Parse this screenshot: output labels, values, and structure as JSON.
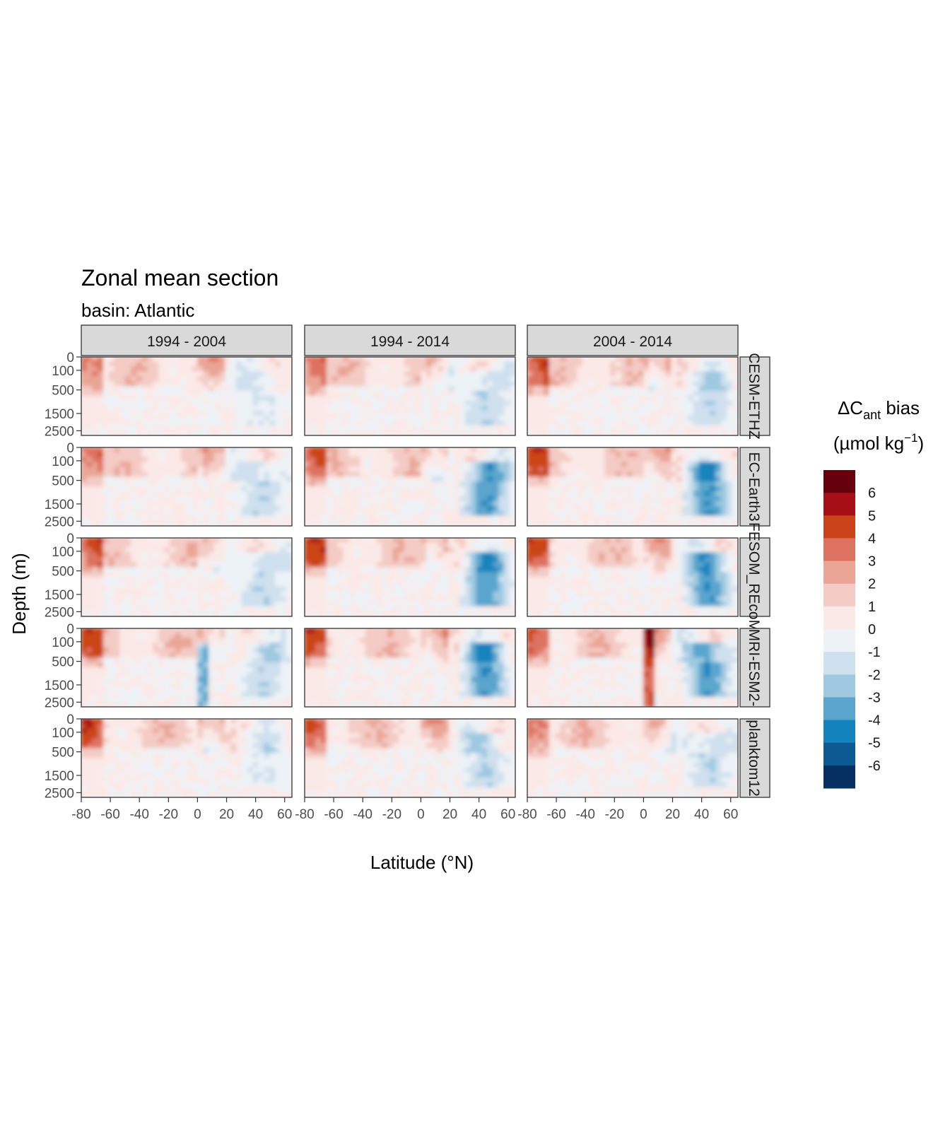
{
  "chart_data": {
    "type": "heatmap",
    "title": "Zonal mean section",
    "subtitle": "basin: Atlantic",
    "xlabel": "Latitude (°N)",
    "ylabel": "Depth (m)",
    "xlim": [
      -80,
      65
    ],
    "x_ticks": [
      "-80",
      "-60",
      "-40",
      "-20",
      "0",
      "20",
      "40",
      "60"
    ],
    "y_ticks": [
      "0",
      "100",
      "500",
      "1500",
      "2500"
    ],
    "column_facets": [
      "1994 - 2004",
      "1994 - 2014",
      "2004 - 2014"
    ],
    "row_facets": [
      "CESM-ETHZ",
      "EC-Earth3",
      "FESOM_REcoM",
      "MRI-ESM2-",
      "planktom12"
    ],
    "legend": {
      "title_prefix": "ΔC",
      "title_sub": "ant",
      "title_suffix": " bias",
      "unit_open": "(µmol kg",
      "unit_sup": "−1",
      "unit_close": ")",
      "placement": "right",
      "labels": [
        "6",
        "5",
        "4",
        "3",
        "2",
        "1",
        "0",
        "-1",
        "-2",
        "-3",
        "-4",
        "-5",
        "-6"
      ],
      "colors": [
        "#67000d",
        "#a50f15",
        "#cb4419",
        "#de7261",
        "#eaa596",
        "#f4cbc5",
        "#fbe9e7",
        "#edf2f6",
        "#cfe0ee",
        "#9ec9e1",
        "#5aa5cd",
        "#1383bd",
        "#0c5a91",
        "#053061"
      ]
    }
  }
}
